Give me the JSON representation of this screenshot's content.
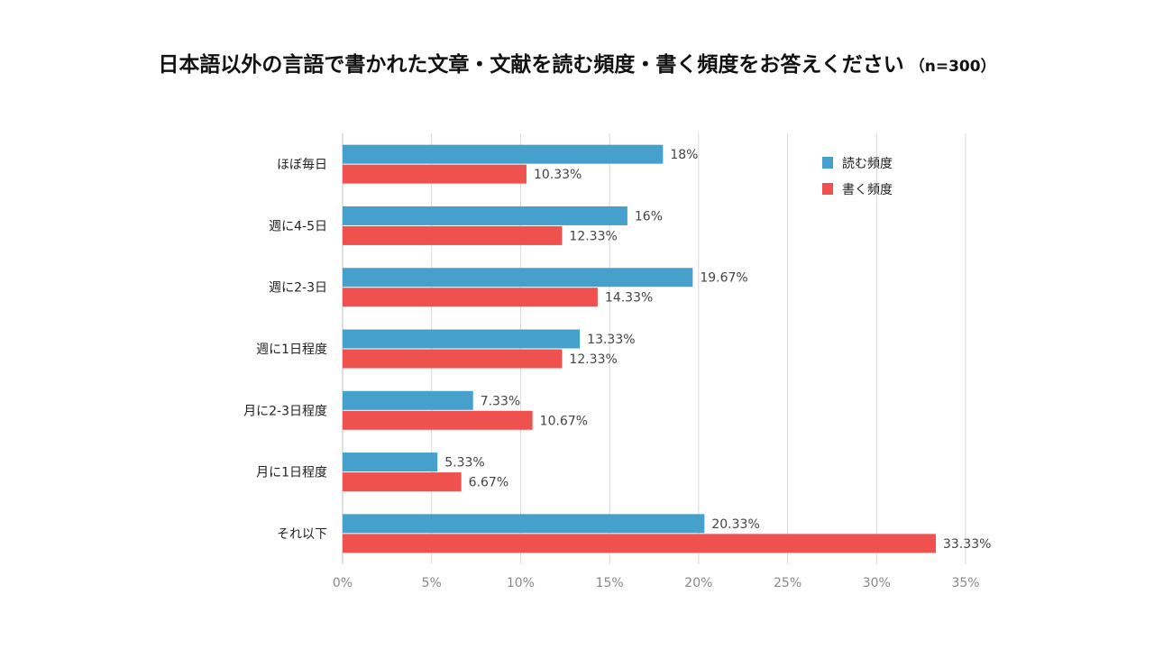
{
  "title": "日本語以外の言語で書かれた文章・文献を読む頻度・書く頻度をお答えください",
  "subtitle": "（n=300）",
  "colors": {
    "read": "#46A0CC",
    "write": "#EE514E",
    "grid": "#d9d9d9"
  },
  "chart_data": {
    "type": "bar",
    "orientation": "horizontal",
    "categories": [
      "ほぼ毎日",
      "週に4-5日",
      "週に2-3日",
      "週に1日程度",
      "月に2-3日程度",
      "月に1日程度",
      "それ以下"
    ],
    "series": [
      {
        "name": "読む頻度",
        "values": [
          18,
          16,
          19.67,
          13.33,
          7.33,
          5.33,
          20.33
        ],
        "labels": [
          "18%",
          "16%",
          "19.67%",
          "13.33%",
          "7.33%",
          "5.33%",
          "20.33%"
        ]
      },
      {
        "name": "書く頻度",
        "values": [
          10.33,
          12.33,
          14.33,
          12.33,
          10.67,
          6.67,
          33.33
        ],
        "labels": [
          "10.33%",
          "12.33%",
          "14.33%",
          "12.33%",
          "10.67%",
          "6.67%",
          "33.33%"
        ]
      }
    ],
    "xlim": [
      0,
      35
    ],
    "ticks": [
      0,
      5,
      10,
      15,
      20,
      25,
      30,
      35
    ],
    "tick_labels": [
      "0%",
      "5%",
      "10%",
      "15%",
      "20%",
      "25%",
      "30%",
      "35%"
    ],
    "grid": true,
    "legend_position": "top-right"
  }
}
